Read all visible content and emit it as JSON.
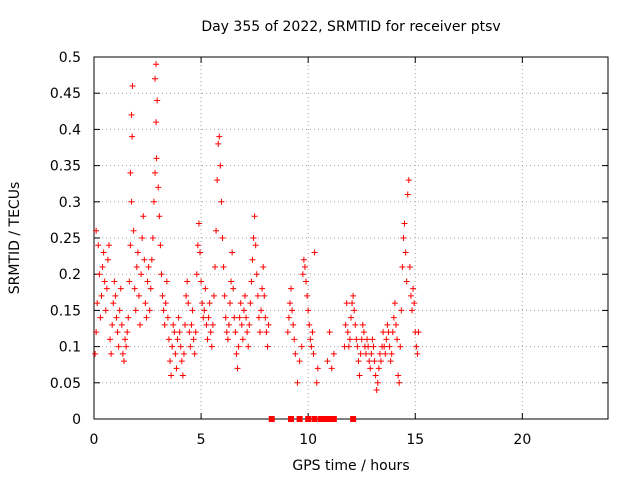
{
  "chart_data": {
    "type": "scatter",
    "title": "Day 355 of 2022, SRMTID for receiver ptsv",
    "xlabel": "GPS time / hours",
    "ylabel": "SRMTID / TECUs",
    "xlim": [
      0,
      24
    ],
    "ylim": [
      0,
      0.5
    ],
    "x_ticks": [
      0,
      5,
      10,
      15,
      20
    ],
    "y_ticks": [
      0,
      0.05,
      0.1,
      0.15,
      0.2,
      0.25,
      0.3,
      0.35,
      0.4,
      0.45,
      0.5
    ],
    "x_tick_labels": [
      "0",
      "5",
      "10",
      "15",
      "20"
    ],
    "y_tick_labels": [
      "0",
      "0.05",
      "0.1",
      "0.15",
      "0.2",
      "0.25",
      "0.3",
      "0.35",
      "0.4",
      "0.45",
      "0.5"
    ],
    "grid": true,
    "marker": "plus",
    "color": "#ff0000",
    "series": [
      {
        "points": [
          [
            0.05,
            0.09
          ],
          [
            0.1,
            0.12
          ],
          [
            0.15,
            0.16
          ],
          [
            0.1,
            0.26
          ],
          [
            0.2,
            0.24
          ],
          [
            0.25,
            0.2
          ],
          [
            0.3,
            0.14
          ],
          [
            0.35,
            0.17
          ],
          [
            0.4,
            0.21
          ],
          [
            0.45,
            0.23
          ],
          [
            0.5,
            0.19
          ],
          [
            0.55,
            0.15
          ],
          [
            0.6,
            0.18
          ],
          [
            0.65,
            0.22
          ],
          [
            0.7,
            0.24
          ],
          [
            0.75,
            0.11
          ],
          [
            0.8,
            0.09
          ],
          [
            0.85,
            0.13
          ],
          [
            0.9,
            0.16
          ],
          [
            0.95,
            0.19
          ],
          [
            1.0,
            0.17
          ],
          [
            1.05,
            0.14
          ],
          [
            1.1,
            0.12
          ],
          [
            1.15,
            0.1
          ],
          [
            1.2,
            0.15
          ],
          [
            1.25,
            0.18
          ],
          [
            1.3,
            0.13
          ],
          [
            1.35,
            0.09
          ],
          [
            1.4,
            0.08
          ],
          [
            1.45,
            0.11
          ],
          [
            1.5,
            0.1
          ],
          [
            1.55,
            0.12
          ],
          [
            1.6,
            0.14
          ],
          [
            1.65,
            0.19
          ],
          [
            1.7,
            0.24
          ],
          [
            1.75,
            0.3
          ],
          [
            1.7,
            0.34
          ],
          [
            1.75,
            0.42
          ],
          [
            1.8,
            0.46
          ],
          [
            1.78,
            0.39
          ],
          [
            1.85,
            0.26
          ],
          [
            1.9,
            0.18
          ],
          [
            1.95,
            0.15
          ],
          [
            2.0,
            0.21
          ],
          [
            2.05,
            0.23
          ],
          [
            2.1,
            0.17
          ],
          [
            2.15,
            0.13
          ],
          [
            2.2,
            0.2
          ],
          [
            2.25,
            0.25
          ],
          [
            2.3,
            0.28
          ],
          [
            2.35,
            0.22
          ],
          [
            2.4,
            0.16
          ],
          [
            2.45,
            0.14
          ],
          [
            2.5,
            0.19
          ],
          [
            2.55,
            0.21
          ],
          [
            2.6,
            0.15
          ],
          [
            2.65,
            0.18
          ],
          [
            2.7,
            0.22
          ],
          [
            2.75,
            0.25
          ],
          [
            2.8,
            0.3
          ],
          [
            2.85,
            0.34
          ],
          [
            2.9,
            0.41
          ],
          [
            2.85,
            0.47
          ],
          [
            2.9,
            0.49
          ],
          [
            2.95,
            0.44
          ],
          [
            2.92,
            0.36
          ],
          [
            3.0,
            0.32
          ],
          [
            3.05,
            0.28
          ],
          [
            3.1,
            0.24
          ],
          [
            3.15,
            0.2
          ],
          [
            3.2,
            0.17
          ],
          [
            3.25,
            0.15
          ],
          [
            3.3,
            0.13
          ],
          [
            3.35,
            0.16
          ],
          [
            3.4,
            0.19
          ],
          [
            3.45,
            0.14
          ],
          [
            3.5,
            0.11
          ],
          [
            3.55,
            0.08
          ],
          [
            3.6,
            0.06
          ],
          [
            3.65,
            0.1
          ],
          [
            3.7,
            0.13
          ],
          [
            3.75,
            0.12
          ],
          [
            3.8,
            0.09
          ],
          [
            3.85,
            0.07
          ],
          [
            3.9,
            0.11
          ],
          [
            3.95,
            0.14
          ],
          [
            4.0,
            0.12
          ],
          [
            4.05,
            0.1
          ],
          [
            4.1,
            0.08
          ],
          [
            4.15,
            0.06
          ],
          [
            4.2,
            0.09
          ],
          [
            4.25,
            0.13
          ],
          [
            4.3,
            0.17
          ],
          [
            4.35,
            0.19
          ],
          [
            4.4,
            0.16
          ],
          [
            4.45,
            0.12
          ],
          [
            4.5,
            0.1
          ],
          [
            4.55,
            0.13
          ],
          [
            4.6,
            0.15
          ],
          [
            4.65,
            0.11
          ],
          [
            4.7,
            0.09
          ],
          [
            4.75,
            0.12
          ],
          [
            4.8,
            0.2
          ],
          [
            4.85,
            0.24
          ],
          [
            4.9,
            0.27
          ],
          [
            4.95,
            0.23
          ],
          [
            5.0,
            0.19
          ],
          [
            5.05,
            0.16
          ],
          [
            5.1,
            0.14
          ],
          [
            5.15,
            0.15
          ],
          [
            5.2,
            0.18
          ],
          [
            5.25,
            0.13
          ],
          [
            5.3,
            0.11
          ],
          [
            5.35,
            0.14
          ],
          [
            5.4,
            0.16
          ],
          [
            5.45,
            0.12
          ],
          [
            5.5,
            0.1
          ],
          [
            5.55,
            0.13
          ],
          [
            5.6,
            0.17
          ],
          [
            5.65,
            0.21
          ],
          [
            5.7,
            0.26
          ],
          [
            5.75,
            0.33
          ],
          [
            5.8,
            0.38
          ],
          [
            5.85,
            0.39
          ],
          [
            5.9,
            0.35
          ],
          [
            5.95,
            0.3
          ],
          [
            6.0,
            0.25
          ],
          [
            6.05,
            0.21
          ],
          [
            6.1,
            0.17
          ],
          [
            6.15,
            0.14
          ],
          [
            6.2,
            0.12
          ],
          [
            6.25,
            0.11
          ],
          [
            6.3,
            0.13
          ],
          [
            6.35,
            0.16
          ],
          [
            6.4,
            0.19
          ],
          [
            6.45,
            0.23
          ],
          [
            6.5,
            0.18
          ],
          [
            6.55,
            0.14
          ],
          [
            6.6,
            0.12
          ],
          [
            6.65,
            0.09
          ],
          [
            6.7,
            0.07
          ],
          [
            6.75,
            0.1
          ],
          [
            6.8,
            0.14
          ],
          [
            6.85,
            0.16
          ],
          [
            6.9,
            0.13
          ],
          [
            6.95,
            0.11
          ],
          [
            7.0,
            0.15
          ],
          [
            7.05,
            0.17
          ],
          [
            7.1,
            0.14
          ],
          [
            7.15,
            0.12
          ],
          [
            7.2,
            0.1
          ],
          [
            7.25,
            0.13
          ],
          [
            7.3,
            0.16
          ],
          [
            7.35,
            0.19
          ],
          [
            7.4,
            0.22
          ],
          [
            7.45,
            0.25
          ],
          [
            7.5,
            0.28
          ],
          [
            7.55,
            0.24
          ],
          [
            7.6,
            0.2
          ],
          [
            7.65,
            0.17
          ],
          [
            7.7,
            0.14
          ],
          [
            7.75,
            0.12
          ],
          [
            7.8,
            0.15
          ],
          [
            7.85,
            0.18
          ],
          [
            7.9,
            0.21
          ],
          [
            7.95,
            0.17
          ],
          [
            8.0,
            0.14
          ],
          [
            8.05,
            0.12
          ],
          [
            8.1,
            0.1
          ],
          [
            8.15,
            0.13
          ],
          [
            9.05,
            0.12
          ],
          [
            9.1,
            0.14
          ],
          [
            9.15,
            0.16
          ],
          [
            9.2,
            0.18
          ],
          [
            9.25,
            0.15
          ],
          [
            9.3,
            0.13
          ],
          [
            9.35,
            0.11
          ],
          [
            9.4,
            0.09
          ],
          [
            9.5,
            0.05
          ],
          [
            9.6,
            0.08
          ],
          [
            9.7,
            0.1
          ],
          [
            9.75,
            0.2
          ],
          [
            9.8,
            0.22
          ],
          [
            9.85,
            0.21
          ],
          [
            9.9,
            0.19
          ],
          [
            9.95,
            0.17
          ],
          [
            10.0,
            0.15
          ],
          [
            10.05,
            0.13
          ],
          [
            10.1,
            0.11
          ],
          [
            10.15,
            0.1
          ],
          [
            10.2,
            0.12
          ],
          [
            10.25,
            0.09
          ],
          [
            10.3,
            0.23
          ],
          [
            10.4,
            0.05
          ],
          [
            10.45,
            0.07
          ],
          [
            10.9,
            0.08
          ],
          [
            11.0,
            0.12
          ],
          [
            11.1,
            0.07
          ],
          [
            11.2,
            0.09
          ],
          [
            11.7,
            0.1
          ],
          [
            11.75,
            0.13
          ],
          [
            11.8,
            0.16
          ],
          [
            11.85,
            0.12
          ],
          [
            11.9,
            0.1
          ],
          [
            11.95,
            0.11
          ],
          [
            12.0,
            0.14
          ],
          [
            12.05,
            0.16
          ],
          [
            12.1,
            0.17
          ],
          [
            12.15,
            0.15
          ],
          [
            12.2,
            0.13
          ],
          [
            12.25,
            0.11
          ],
          [
            12.3,
            0.1
          ],
          [
            12.35,
            0.08
          ],
          [
            12.4,
            0.06
          ],
          [
            12.45,
            0.09
          ],
          [
            12.5,
            0.11
          ],
          [
            12.55,
            0.13
          ],
          [
            12.6,
            0.12
          ],
          [
            12.65,
            0.1
          ],
          [
            12.7,
            0.09
          ],
          [
            12.75,
            0.11
          ],
          [
            12.8,
            0.1
          ],
          [
            12.85,
            0.08
          ],
          [
            12.9,
            0.07
          ],
          [
            12.95,
            0.09
          ],
          [
            13.0,
            0.11
          ],
          [
            13.05,
            0.1
          ],
          [
            13.1,
            0.08
          ],
          [
            13.15,
            0.06
          ],
          [
            13.2,
            0.04
          ],
          [
            13.25,
            0.05
          ],
          [
            13.3,
            0.07
          ],
          [
            13.35,
            0.09
          ],
          [
            13.4,
            0.08
          ],
          [
            13.45,
            0.1
          ],
          [
            13.5,
            0.12
          ],
          [
            13.55,
            0.1
          ],
          [
            13.6,
            0.09
          ],
          [
            13.65,
            0.11
          ],
          [
            13.7,
            0.13
          ],
          [
            13.75,
            0.12
          ],
          [
            13.8,
            0.1
          ],
          [
            13.85,
            0.08
          ],
          [
            13.9,
            0.09
          ],
          [
            13.95,
            0.12
          ],
          [
            14.0,
            0.14
          ],
          [
            14.05,
            0.16
          ],
          [
            14.1,
            0.13
          ],
          [
            14.15,
            0.11
          ],
          [
            14.2,
            0.06
          ],
          [
            14.25,
            0.05
          ],
          [
            14.3,
            0.1
          ],
          [
            14.35,
            0.15
          ],
          [
            14.4,
            0.21
          ],
          [
            14.45,
            0.25
          ],
          [
            14.5,
            0.27
          ],
          [
            14.55,
            0.23
          ],
          [
            14.6,
            0.19
          ],
          [
            14.65,
            0.31
          ],
          [
            14.7,
            0.33
          ],
          [
            14.75,
            0.21
          ],
          [
            14.8,
            0.17
          ],
          [
            14.85,
            0.15
          ],
          [
            14.9,
            0.18
          ],
          [
            14.95,
            0.16
          ],
          [
            15.0,
            0.12
          ],
          [
            15.05,
            0.1
          ],
          [
            15.1,
            0.09
          ],
          [
            15.15,
            0.12
          ]
        ]
      },
      {
        "points": [
          [
            8.3,
            0
          ],
          [
            9.2,
            0
          ],
          [
            9.6,
            0
          ],
          [
            10.0,
            0
          ],
          [
            10.3,
            0
          ],
          [
            10.6,
            0
          ],
          [
            10.8,
            0
          ],
          [
            11.0,
            0
          ],
          [
            11.1,
            0
          ],
          [
            11.2,
            0
          ],
          [
            12.1,
            0
          ]
        ]
      }
    ]
  }
}
